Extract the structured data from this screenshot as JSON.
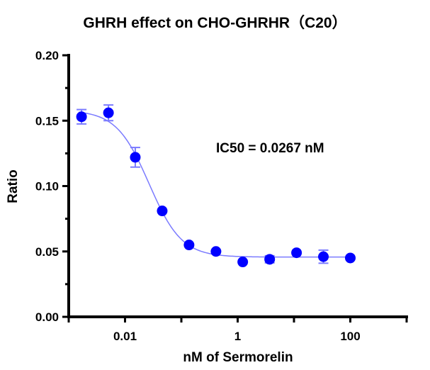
{
  "chart_data": {
    "type": "scatter",
    "title": "GHRH effect on CHO-GHRHR（C20）",
    "xlabel": "nM of Sermorelin",
    "ylabel": "Ratio",
    "xscale": "log",
    "xlim": [
      0.001,
      1000
    ],
    "ylim": [
      0,
      0.2
    ],
    "x_tick_labels": [
      "0.01",
      "1",
      "100"
    ],
    "x_tick_values": [
      0.01,
      1,
      100
    ],
    "y_tick_labels": [
      "0.00",
      "0.05",
      "0.10",
      "0.15",
      "0.20"
    ],
    "y_tick_values": [
      0,
      0.05,
      0.1,
      0.15,
      0.2
    ],
    "grid": false,
    "annotation": "IC50 = 0.0267 nM",
    "marker_color": "#0000ff",
    "curve_color": "#7b7bff",
    "points": {
      "x": [
        0.00169,
        0.00508,
        0.0152,
        0.0457,
        0.137,
        0.412,
        1.23,
        3.7,
        11.1,
        33.3,
        100
      ],
      "y": [
        0.153,
        0.156,
        0.122,
        0.081,
        0.055,
        0.05,
        0.042,
        0.044,
        0.049,
        0.046,
        0.045
      ],
      "err": [
        0.0055,
        0.006,
        0.0075,
        0.0,
        0.0,
        0.0,
        0.0,
        0.0027,
        0.0,
        0.005,
        0.0
      ]
    },
    "fit": {
      "model": "4PL",
      "top": 0.158,
      "bottom": 0.0457,
      "ic50": 0.0267,
      "hill": 1.5
    }
  }
}
